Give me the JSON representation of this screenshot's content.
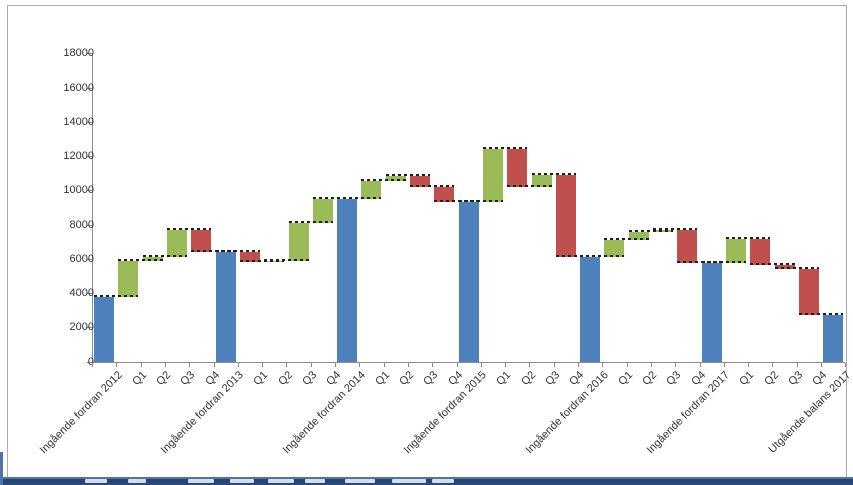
{
  "chart_data": {
    "type": "bar",
    "variant": "waterfall",
    "title": "",
    "xlabel": "",
    "ylabel": "",
    "ylim": [
      0,
      18000
    ],
    "ytick_step": 2000,
    "ytick_labels": [
      "0",
      "2000",
      "4000",
      "6000",
      "8000",
      "10000",
      "12000",
      "14000",
      "16000",
      "18000"
    ],
    "grid": false,
    "legend": false,
    "colors": {
      "total": "#4F81BD",
      "increase": "#9BBB59",
      "decrease": "#C0504D",
      "connector": "#1f1f1f",
      "axis": "#8c8c8c",
      "label": "#333333",
      "frame_border": "#ababab"
    },
    "items": [
      {
        "label": "Ingående fordran 2012",
        "type": "total",
        "level": 3800,
        "change": null
      },
      {
        "label": "Q1",
        "type": "increase",
        "level": 5900,
        "change": 2100
      },
      {
        "label": "Q2",
        "type": "increase",
        "level": 6100,
        "change": 200
      },
      {
        "label": "Q3",
        "type": "increase",
        "level": 7700,
        "change": 1600
      },
      {
        "label": "Q4",
        "type": "decrease",
        "level": 6400,
        "change": -1300
      },
      {
        "label": "Ingående fordran 2013",
        "type": "total",
        "level": 6400,
        "change": null
      },
      {
        "label": "Q1",
        "type": "decrease",
        "level": 5800,
        "change": -600
      },
      {
        "label": "Q2",
        "type": "increase",
        "level": 5900,
        "change": 100
      },
      {
        "label": "Q3",
        "type": "increase",
        "level": 8100,
        "change": 2200
      },
      {
        "label": "Q4",
        "type": "increase",
        "level": 9500,
        "change": 1400
      },
      {
        "label": "Ingående fordran 2014",
        "type": "total",
        "level": 9500,
        "change": null
      },
      {
        "label": "Q1",
        "type": "increase",
        "level": 10550,
        "change": 1050
      },
      {
        "label": "Q2",
        "type": "increase",
        "level": 10850,
        "change": 300
      },
      {
        "label": "Q3",
        "type": "decrease",
        "level": 10200,
        "change": -650
      },
      {
        "label": "Q4",
        "type": "decrease",
        "level": 9300,
        "change": -900
      },
      {
        "label": "Ingående fordran 2015",
        "type": "total",
        "level": 9300,
        "change": null
      },
      {
        "label": "Q1",
        "type": "increase",
        "level": 12400,
        "change": 3100
      },
      {
        "label": "Q2",
        "type": "decrease",
        "level": 10200,
        "change": -2200
      },
      {
        "label": "Q3",
        "type": "increase",
        "level": 10900,
        "change": 700
      },
      {
        "label": "Q4",
        "type": "decrease",
        "level": 6100,
        "change": -4800
      },
      {
        "label": "Ingående fordran 2016",
        "type": "total",
        "level": 6100,
        "change": null
      },
      {
        "label": "Q1",
        "type": "increase",
        "level": 7100,
        "change": 1000
      },
      {
        "label": "Q2",
        "type": "increase",
        "level": 7550,
        "change": 450
      },
      {
        "label": "Q3",
        "type": "increase",
        "level": 7700,
        "change": 150
      },
      {
        "label": "Q4",
        "type": "decrease",
        "level": 5750,
        "change": -1950
      },
      {
        "label": "Ingående fordran 2017",
        "type": "total",
        "level": 5750,
        "change": null
      },
      {
        "label": "Q1",
        "type": "increase",
        "level": 7150,
        "change": 1400
      },
      {
        "label": "Q2",
        "type": "decrease",
        "level": 5650,
        "change": -1500
      },
      {
        "label": "Q3",
        "type": "decrease",
        "level": 5400,
        "change": -250
      },
      {
        "label": "Q4",
        "type": "decrease",
        "level": 2700,
        "change": -2700
      },
      {
        "label": "Utgående balans 2017",
        "type": "total",
        "level": 2700,
        "change": null
      }
    ]
  }
}
